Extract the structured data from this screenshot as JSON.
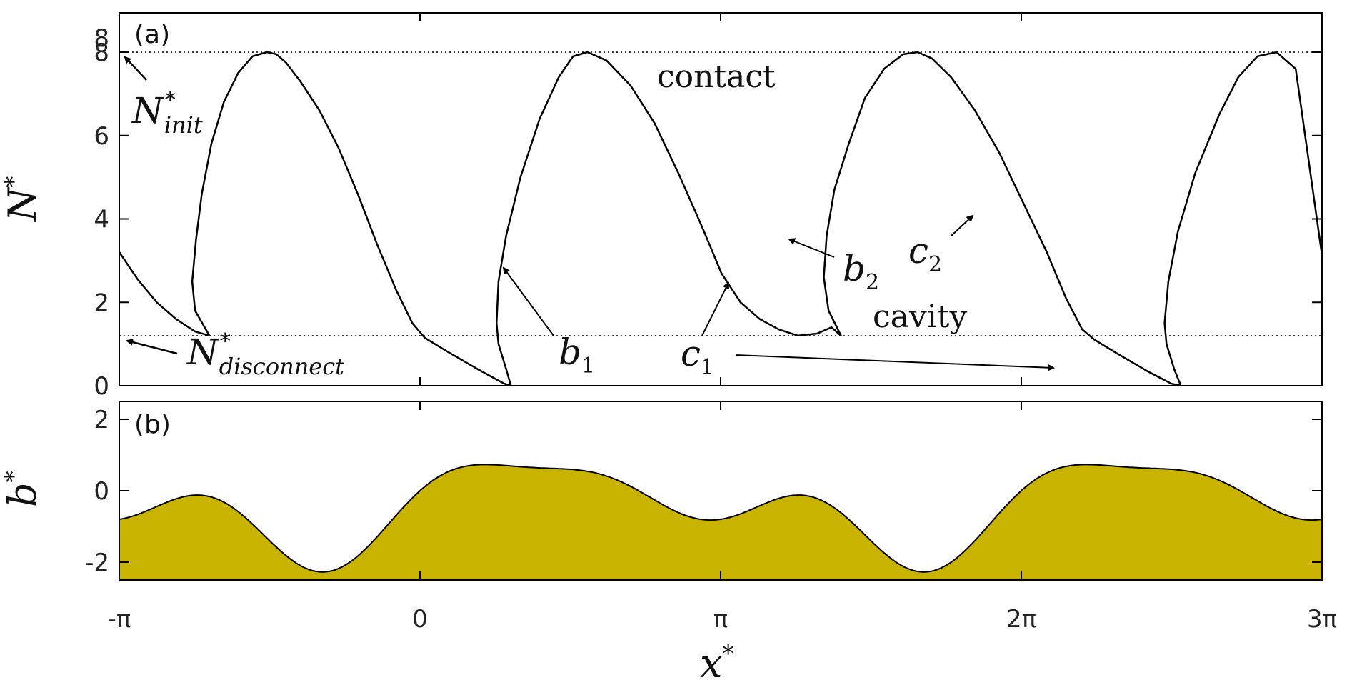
{
  "chart_data": [
    {
      "panel": "(a)",
      "type": "line",
      "ylabel": "N*",
      "xlim": [
        -3.14159,
        9.42478
      ],
      "ylim": [
        0,
        8
      ],
      "yticks": [
        0,
        2,
        4,
        6,
        8
      ],
      "reference_lines": [
        {
          "name": "N*_init",
          "y": 8.0,
          "style": "dotted"
        },
        {
          "name": "N*_disconnect",
          "y": 1.2,
          "style": "dotted"
        }
      ],
      "series": [
        {
          "x": [
            -3.14,
            -2.95,
            -2.75,
            -2.55,
            -2.35,
            -2.2
          ],
          "y": [
            3.2,
            2.55,
            2.0,
            1.6,
            1.3,
            1.2
          ]
        },
        {
          "x": [
            -2.2,
            -2.35,
            -2.38,
            -2.34,
            -2.28,
            -2.18,
            -2.05,
            -1.9,
            -1.75,
            -1.6,
            -1.5,
            -1.4,
            -1.25,
            -1.05,
            -0.85,
            -0.65,
            -0.45,
            -0.25,
            -0.08,
            0.05,
            0.3,
            0.6,
            0.88,
            0.95,
            0.9,
            0.82,
            0.8,
            0.82,
            0.9,
            1.05,
            1.25,
            1.45,
            1.6,
            1.75,
            1.95,
            2.2,
            2.45,
            2.7,
            2.95,
            3.15,
            3.35,
            3.55,
            3.75,
            3.95,
            4.15,
            4.3,
            4.4,
            4.27,
            4.22,
            4.25,
            4.33,
            4.48,
            4.65,
            4.85,
            5.05,
            5.2,
            5.35,
            5.55,
            5.8,
            6.05,
            6.3,
            6.55,
            6.75,
            6.92,
            7.05,
            7.3,
            7.6,
            7.85,
            7.95,
            7.88,
            7.8,
            7.78,
            7.82,
            7.92,
            8.1,
            8.35,
            8.55,
            8.75,
            8.95,
            9.15,
            9.42
          ],
          "y": [
            1.2,
            1.8,
            2.5,
            3.5,
            4.6,
            5.8,
            6.8,
            7.5,
            7.9,
            8.0,
            7.95,
            7.75,
            7.3,
            6.6,
            5.7,
            4.6,
            3.4,
            2.3,
            1.5,
            1.15,
            0.8,
            0.4,
            0.05,
            0.0,
            0.4,
            1.0,
            1.5,
            2.5,
            3.6,
            5.0,
            6.4,
            7.4,
            7.9,
            8.0,
            7.8,
            7.2,
            6.3,
            5.1,
            3.8,
            2.7,
            2.0,
            1.6,
            1.35,
            1.2,
            1.25,
            1.4,
            1.2,
            1.8,
            2.6,
            3.6,
            4.7,
            5.8,
            6.9,
            7.6,
            7.95,
            8.0,
            7.85,
            7.4,
            6.6,
            5.6,
            4.4,
            3.2,
            2.1,
            1.35,
            1.1,
            0.75,
            0.35,
            0.05,
            0.0,
            0.4,
            1.0,
            1.5,
            2.5,
            3.7,
            5.1,
            6.5,
            7.4,
            7.9,
            8.0,
            7.6,
            3.2
          ]
        }
      ],
      "annotations": [
        {
          "text": "contact",
          "x": 4.6,
          "y": 7.4
        },
        {
          "text": "cavity",
          "x": 5.9,
          "y": 1.6
        },
        {
          "text": "b1",
          "arrow_to": [
            0.95,
            2.9
          ]
        },
        {
          "text": "c1",
          "arrow_to": [
            3.25,
            2.7
          ]
        },
        {
          "text": "b2",
          "arrow_to": [
            4.27,
            3.6
          ]
        },
        {
          "text": "c2",
          "arrow_to": [
            6.28,
            4.4
          ]
        },
        {
          "text": "c1",
          "arrow_to": [
            6.58,
            0.45
          ]
        }
      ]
    },
    {
      "panel": "(b)",
      "type": "area",
      "ylabel": "b*",
      "xlabel": "x*",
      "xlim": [
        -3.14159,
        9.42478
      ],
      "ylim": [
        -2.5,
        2.5
      ],
      "yticks": [
        -2,
        0,
        2
      ],
      "xticks": [
        "-π",
        "0",
        "π",
        "2π",
        "3π"
      ],
      "fill_color": "#c8b400",
      "function": "b(x) = sin(x) + 0.7*sin(2x) + 0.4*cos(3x)  (approximate fit)"
    }
  ],
  "text": {
    "panel_a": "(a)",
    "panel_b": "(b)",
    "ylabel_a": "N",
    "ylabel_b": "b",
    "xlabel": "x",
    "star": "*",
    "contact": "contact",
    "cavity": "cavity",
    "b1": "b",
    "b1_sub": "1",
    "b2": "b",
    "b2_sub": "2",
    "c1": "c",
    "c1_sub": "1",
    "c2": "c",
    "c2_sub": "2",
    "ninit": "N",
    "ninit_sub": "init",
    "ndisc": "N",
    "ndisc_sub": "disconnect",
    "xticks": [
      "-π",
      "0",
      "π",
      "2π",
      "3π"
    ],
    "yticks_a": [
      "0",
      "2",
      "4",
      "6",
      "8",
      "8"
    ],
    "yticks_b": [
      "-2",
      "0",
      "2"
    ]
  }
}
